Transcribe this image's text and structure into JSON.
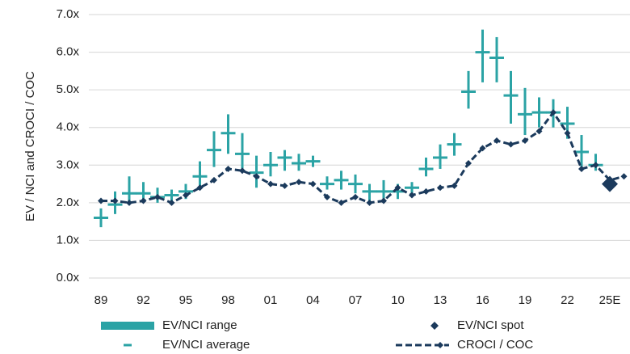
{
  "chart_data": {
    "type": "combo",
    "y_label": "EV / NCI and CROCI / COC",
    "categories": [
      "89",
      null,
      null,
      "92",
      null,
      null,
      "95",
      null,
      null,
      "98",
      null,
      null,
      "01",
      null,
      null,
      "04",
      null,
      null,
      "07",
      null,
      null,
      "10",
      null,
      null,
      "13",
      null,
      null,
      "16",
      null,
      null,
      "19",
      null,
      null,
      "22",
      null,
      null,
      "25E",
      null
    ],
    "ylim": [
      0,
      7
    ],
    "yticks": [
      {
        "value": 0,
        "label": "0.0x"
      },
      {
        "value": 1,
        "label": "1.0x"
      },
      {
        "value": 2,
        "label": "2.0x"
      },
      {
        "value": 3,
        "label": "3.0x"
      },
      {
        "value": 4,
        "label": "4.0x"
      },
      {
        "value": 5,
        "label": "5.0x"
      },
      {
        "value": 6,
        "label": "6.0x"
      },
      {
        "value": 7,
        "label": "7.0x"
      }
    ],
    "grid": true,
    "legend": "bottom",
    "series": [
      {
        "name": "EV/NCI range",
        "type": "range",
        "color": "#2ba3a5",
        "low": [
          1.35,
          1.7,
          1.95,
          2.05,
          2.0,
          2.05,
          2.1,
          2.35,
          2.95,
          3.3,
          2.85,
          2.4,
          2.7,
          2.85,
          2.85,
          2.95,
          2.35,
          2.35,
          2.25,
          2.05,
          2.0,
          2.1,
          2.25,
          2.7,
          2.9,
          3.25,
          4.5,
          5.2,
          5.2,
          4.1,
          3.8,
          4.0,
          4.0,
          3.7,
          2.9,
          2.85,
          null,
          null
        ],
        "high": [
          1.85,
          2.3,
          2.7,
          2.55,
          2.4,
          2.35,
          2.5,
          3.1,
          3.9,
          4.35,
          3.85,
          3.25,
          3.35,
          3.4,
          3.3,
          3.25,
          2.7,
          2.85,
          2.75,
          2.5,
          2.6,
          2.5,
          2.55,
          3.2,
          3.55,
          3.85,
          5.5,
          6.6,
          6.4,
          5.5,
          5.05,
          4.8,
          4.75,
          4.55,
          3.8,
          3.3,
          null,
          null
        ]
      },
      {
        "name": "EV/NCI average",
        "type": "tick",
        "color": "#2ba3a5",
        "values": [
          1.6,
          1.95,
          2.25,
          2.25,
          2.15,
          2.2,
          2.3,
          2.7,
          3.4,
          3.85,
          3.3,
          2.8,
          3.0,
          3.2,
          3.05,
          3.1,
          2.5,
          2.6,
          2.5,
          2.3,
          2.3,
          2.3,
          2.4,
          2.9,
          3.2,
          3.55,
          4.95,
          6.0,
          5.85,
          4.85,
          4.35,
          4.4,
          4.4,
          4.1,
          3.35,
          3.0,
          null,
          null
        ]
      },
      {
        "name": "EV/NCI spot",
        "type": "marker",
        "color": "#1b3a5c",
        "values": [
          null,
          null,
          null,
          null,
          null,
          null,
          null,
          null,
          null,
          null,
          null,
          null,
          null,
          null,
          null,
          null,
          null,
          null,
          null,
          null,
          null,
          null,
          null,
          null,
          null,
          null,
          null,
          null,
          null,
          null,
          null,
          null,
          null,
          null,
          null,
          null,
          2.5,
          null
        ]
      },
      {
        "name": "CROCI / COC",
        "type": "line",
        "color": "#1b3a5c",
        "values": [
          2.05,
          2.05,
          2.0,
          2.05,
          2.15,
          2.0,
          2.2,
          2.4,
          2.6,
          2.9,
          2.85,
          2.7,
          2.5,
          2.45,
          2.55,
          2.5,
          2.15,
          2.0,
          2.15,
          2.0,
          2.05,
          2.4,
          2.2,
          2.3,
          2.4,
          2.45,
          3.05,
          3.45,
          3.65,
          3.55,
          3.65,
          3.9,
          4.4,
          3.85,
          2.9,
          3.0,
          2.6,
          2.7
        ]
      }
    ]
  }
}
